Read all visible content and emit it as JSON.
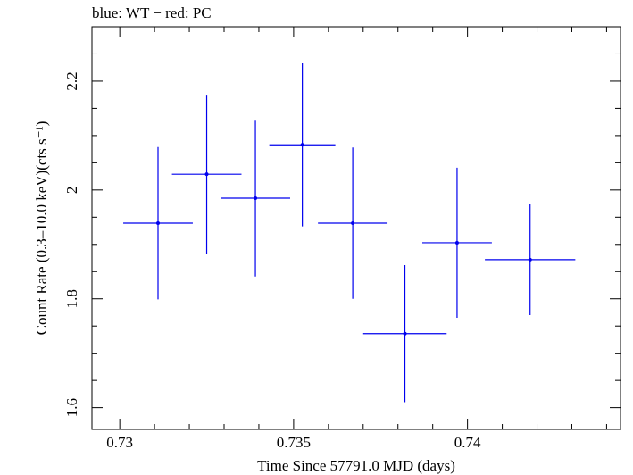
{
  "header": {
    "title": "blue: WT − red: PC"
  },
  "chart_data": {
    "type": "scatter",
    "title": "blue: WT − red: PC",
    "xlabel": "Time Since 57791.0 MJD (days)",
    "ylabel": "Count Rate (0.3–10.0 keV)(cts s⁻¹)",
    "xlim": [
      0.7292,
      0.7444
    ],
    "ylim": [
      1.56,
      2.3
    ],
    "x_ticks": [
      0.73,
      0.735,
      0.74
    ],
    "x_tick_labels": [
      "0.73",
      "0.735",
      "0.74"
    ],
    "y_ticks": [
      1.6,
      1.8,
      2.0,
      2.2
    ],
    "y_tick_labels": [
      "1.6",
      "1.8",
      "2",
      "2.2"
    ],
    "grid": false,
    "series": [
      {
        "color": "#0000ee",
        "points": [
          {
            "x": 0.7311,
            "y": 1.939,
            "xerr": 0.001,
            "yerr": 0.14
          },
          {
            "x": 0.7325,
            "y": 2.029,
            "xerr": 0.001,
            "yerr": 0.146
          },
          {
            "x": 0.7339,
            "y": 1.985,
            "xerr": 0.001,
            "yerr": 0.144
          },
          {
            "x": 0.73525,
            "y": 2.083,
            "xerr": 0.00095,
            "yerr": 0.15
          },
          {
            "x": 0.7367,
            "y": 1.939,
            "xerr": 0.001,
            "yerr": 0.139
          },
          {
            "x": 0.7382,
            "y": 1.736,
            "xerr": 0.0012,
            "yerr": 0.126
          },
          {
            "x": 0.7397,
            "y": 1.903,
            "xerr": 0.001,
            "yerr": 0.138
          },
          {
            "x": 0.7418,
            "y": 1.872,
            "xerr": 0.0013,
            "yerr": 0.102
          }
        ]
      }
    ]
  }
}
